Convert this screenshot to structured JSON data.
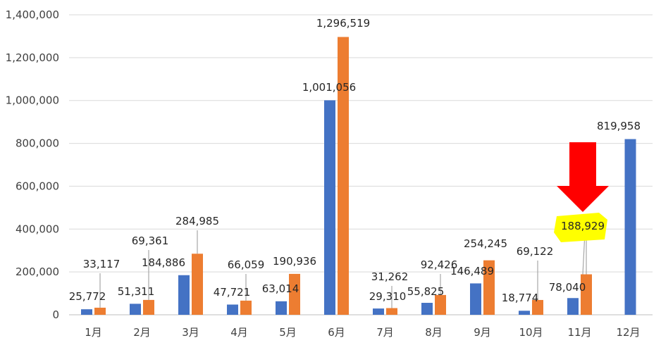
{
  "chart_data": {
    "type": "bar",
    "categories": [
      "1月",
      "2月",
      "3月",
      "4月",
      "5月",
      "6月",
      "7月",
      "8月",
      "9月",
      "10月",
      "11月",
      "12月"
    ],
    "series": [
      {
        "color": "#4472c4",
        "values": [
          25772,
          51311,
          184886,
          47721,
          63014,
          1001056,
          29310,
          55825,
          146489,
          18774,
          78040,
          819958
        ],
        "labels": [
          "25,772",
          "51,311",
          "184,886",
          "47,721",
          "63,014",
          "1,001,056",
          "29,310",
          "55,825",
          "146,489",
          "18,774",
          "78,040",
          "819,958"
        ]
      },
      {
        "color": "#ed7d31",
        "values": [
          33117,
          69361,
          284985,
          66059,
          190936,
          1296519,
          31262,
          92426,
          254245,
          69122,
          188929,
          null
        ],
        "labels": [
          "33,117",
          "69,361",
          "284,985",
          "66,059",
          "190,936",
          "1,296,519",
          "31,262",
          "92,426",
          "254,245",
          "69,122",
          "188,929",
          ""
        ]
      }
    ],
    "ylim": [
      0,
      1400000
    ],
    "y_ticks": [
      0,
      200000,
      400000,
      600000,
      800000,
      1000000,
      1200000,
      1400000
    ],
    "y_tick_labels": [
      "0",
      "200,000",
      "400,000",
      "600,000",
      "800,000",
      "1,000,000",
      "1,200,000",
      "1,400,000"
    ],
    "grid": true,
    "legend": "none",
    "title": "",
    "xlabel": "",
    "ylabel": "",
    "annotations": {
      "arrow": {
        "color": "#ff0000",
        "direction": "down",
        "target_category": "11月"
      },
      "highlight": {
        "color": "#ffff00",
        "label": "188,929"
      }
    }
  }
}
